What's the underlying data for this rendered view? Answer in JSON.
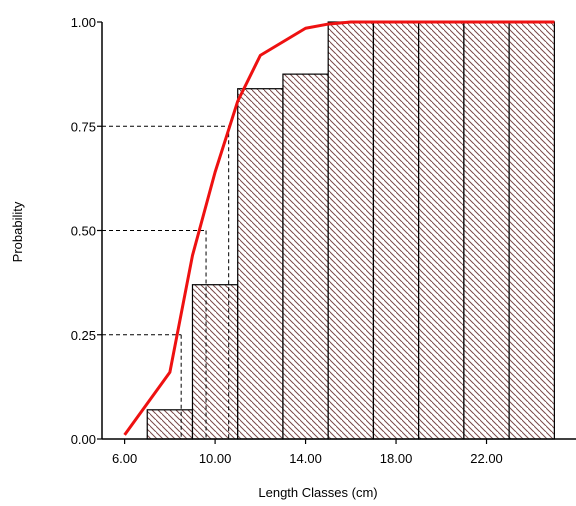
{
  "chart_data": {
    "type": "bar",
    "xlabel": "Length Classes (cm)",
    "ylabel": "Probability",
    "xlim": [
      5.0,
      26.0
    ],
    "ylim": [
      0,
      1.0
    ],
    "x_ticks": [
      6,
      10,
      14,
      18,
      22
    ],
    "x_tick_labels": [
      "6.00",
      "10.00",
      "14.00",
      "18.00",
      "22.00"
    ],
    "y_ticks": [
      0,
      0.25,
      0.5,
      0.75,
      1.0
    ],
    "y_tick_labels": [
      "0.00",
      "0.25",
      "0.50",
      "0.75",
      "1.00"
    ],
    "bars": [
      {
        "x0": 7.0,
        "x1": 9.0,
        "value": 0.07
      },
      {
        "x0": 9.0,
        "x1": 11.0,
        "value": 0.37
      },
      {
        "x0": 11.0,
        "x1": 13.0,
        "value": 0.84
      },
      {
        "x0": 13.0,
        "x1": 15.0,
        "value": 0.875
      },
      {
        "x0": 15.0,
        "x1": 17.0,
        "value": 1.0
      },
      {
        "x0": 17.0,
        "x1": 19.0,
        "value": 1.0
      },
      {
        "x0": 19.0,
        "x1": 21.0,
        "value": 1.0
      },
      {
        "x0": 21.0,
        "x1": 23.0,
        "value": 1.0
      },
      {
        "x0": 23.0,
        "x1": 25.0,
        "value": 1.0
      }
    ],
    "curve": {
      "color": "#ee1111",
      "x": [
        6.0,
        8.0,
        9.0,
        10.0,
        11.0,
        12.0,
        14.0,
        15.0,
        16.0,
        25.0
      ],
      "y": [
        0.01,
        0.16,
        0.44,
        0.64,
        0.81,
        0.92,
        0.985,
        0.995,
        1.0,
        1.0
      ]
    },
    "reference_lines": [
      {
        "p": 0.25,
        "x": 8.5
      },
      {
        "p": 0.5,
        "x": 9.6
      },
      {
        "p": 0.75,
        "x": 10.6
      }
    ],
    "bar_fill": "#ffffff",
    "bar_hatch_color": "#7a4a4a",
    "bar_edge_color": "#000000",
    "grid": false
  }
}
